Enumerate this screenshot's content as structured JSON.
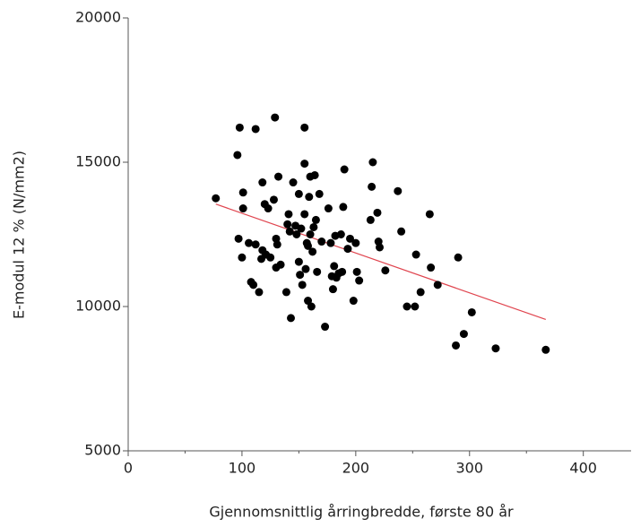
{
  "chart_data": {
    "type": "scatter",
    "x_label": "Gjennomsnittlig årringbredde, første 80 år",
    "y_label": "E-modul 12 % (N/mm2)",
    "color": "#000000",
    "x": [
      77,
      96,
      98,
      112,
      129,
      155,
      97,
      100,
      101,
      101,
      106,
      108,
      110,
      112,
      115,
      117,
      118,
      118,
      120,
      121,
      123,
      125,
      128,
      130,
      130,
      131,
      132,
      134,
      139,
      140,
      141,
      142,
      143,
      145,
      147,
      148,
      150,
      150,
      151,
      152,
      153,
      155,
      155,
      156,
      157,
      158,
      158,
      159,
      160,
      160,
      161,
      162,
      163,
      164,
      165,
      166,
      168,
      170,
      173,
      176,
      178,
      179,
      180,
      181,
      182,
      183,
      185,
      187,
      188,
      189,
      190,
      193,
      195,
      198,
      200,
      201,
      203,
      213,
      214,
      215,
      219,
      220,
      221,
      226,
      237,
      240,
      245,
      252,
      253,
      257,
      265,
      266,
      272,
      288,
      290,
      295,
      302,
      323,
      367
    ],
    "y": [
      13750,
      15250,
      16200,
      16150,
      16550,
      16200,
      12350,
      11700,
      13400,
      13950,
      12200,
      10850,
      10750,
      12150,
      10500,
      11650,
      11950,
      14300,
      13550,
      11800,
      13400,
      11700,
      13700,
      12350,
      11350,
      12150,
      14500,
      11450,
      10500,
      12850,
      13200,
      12600,
      9600,
      14300,
      12800,
      12500,
      11550,
      13900,
      11100,
      12700,
      10750,
      13200,
      14950,
      11300,
      12200,
      10200,
      12100,
      13800,
      14500,
      12500,
      10000,
      11900,
      12750,
      14550,
      13000,
      11200,
      13900,
      12250,
      9300,
      13400,
      12200,
      11050,
      10600,
      11400,
      12450,
      11000,
      11150,
      12500,
      11200,
      13450,
      14750,
      12000,
      12350,
      10200,
      12200,
      11200,
      10900,
      13000,
      14150,
      15000,
      13250,
      12250,
      12050,
      11250,
      14000,
      12600,
      10000,
      10000,
      11800,
      10500,
      13200,
      11350,
      10750,
      8650,
      11700,
      9050,
      9800,
      8550,
      8500
    ],
    "trendline": {
      "x": [
        77,
        367
      ],
      "y": [
        13550,
        9550
      ],
      "color": "#e0454f"
    },
    "xlim": [
      0,
      442
    ],
    "ylim": [
      5000,
      20000
    ],
    "xticks": [
      0,
      100,
      200,
      300,
      400
    ],
    "xminor_ticks": [
      50,
      150,
      250,
      350
    ],
    "yticks": [
      5000,
      10000,
      15000,
      20000
    ]
  }
}
